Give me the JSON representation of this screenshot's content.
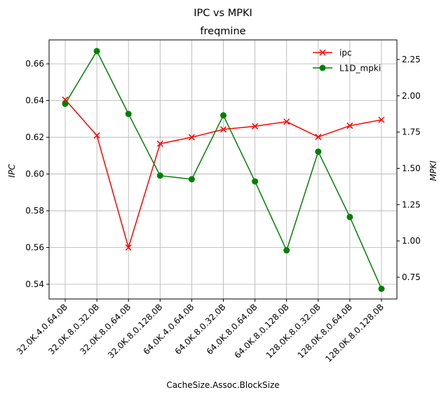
{
  "chart_data": {
    "type": "line",
    "title": "IPC vs MPKI",
    "subtitle": "freqmine",
    "xlabel": "CacheSize.Assoc.BlockSize",
    "ylabel_left": "IPC",
    "ylabel_right": "MPKI",
    "categories": [
      "32.0K.4.0.64.0B",
      "32.0K.8.0.32.0B",
      "32.0K.8.0.64.0B",
      "32.0K.8.0.128.0B",
      "64.0K.4.0.64.0B",
      "64.0K.8.0.32.0B",
      "64.0K.8.0.64.0B",
      "64.0K.8.0.128.0B",
      "128.0K.8.0.32.0B",
      "128.0K.8.0.64.0B",
      "128.0K.8.0.128.0B"
    ],
    "left_axis": {
      "ylim": [
        0.532,
        0.673
      ],
      "ticks": [
        0.54,
        0.56,
        0.58,
        0.6,
        0.62,
        0.64,
        0.66
      ],
      "tick_labels": [
        "0.54",
        "0.56",
        "0.58",
        "0.60",
        "0.62",
        "0.64",
        "0.66"
      ]
    },
    "right_axis": {
      "ylim": [
        0.6,
        2.385
      ],
      "ticks": [
        0.75,
        1.0,
        1.25,
        1.5,
        1.75,
        2.0,
        2.25
      ],
      "tick_labels": [
        "0.75",
        "1.00",
        "1.25",
        "1.50",
        "1.75",
        "2.00",
        "2.25"
      ]
    },
    "grid": true,
    "legend_position": "top-right",
    "series": [
      {
        "name": "ipc",
        "axis": "left",
        "color": "#ff0000",
        "marker": "x",
        "values": [
          0.6405,
          0.621,
          0.56,
          0.6165,
          0.62,
          0.6243,
          0.626,
          0.6285,
          0.6202,
          0.6263,
          0.6295
        ]
      },
      {
        "name": "L1D_mpki",
        "axis": "right",
        "color": "#008000",
        "marker": "o",
        "values": [
          1.945,
          2.308,
          1.875,
          1.45,
          1.425,
          1.865,
          1.41,
          0.935,
          1.615,
          1.165,
          0.67
        ]
      }
    ]
  }
}
